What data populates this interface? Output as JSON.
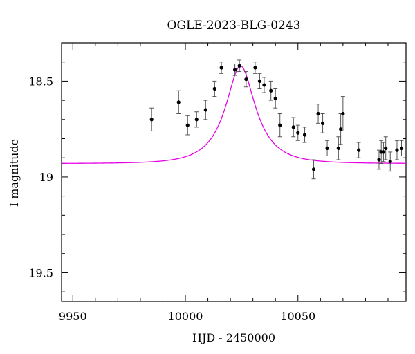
{
  "chart_data": {
    "type": "scatter",
    "title": "OGLE-2023-BLG-0243",
    "xlabel": "HJD - 2450000",
    "ylabel": "I magnitude",
    "xlim": [
      9945,
      10098
    ],
    "ylim": [
      19.65,
      18.3
    ],
    "y_inverted": true,
    "x_ticks": [
      9950,
      10000,
      10050
    ],
    "x_minor_step": 10,
    "y_ticks": [
      18.5,
      19,
      19.5
    ],
    "y_minor_step": 0.1,
    "grid": false,
    "colors": {
      "model": "#e600e6",
      "points": "#000000",
      "errorbars": "#555555"
    },
    "series": [
      {
        "kind": "points_with_errorbars",
        "x": [
          9985,
          9997,
          10001,
          10005,
          10009,
          10013,
          10016,
          10022,
          10024,
          10027,
          10031,
          10033,
          10035,
          10038,
          10040,
          10042,
          10048,
          10050,
          10053,
          10057,
          10059,
          10061,
          10063,
          10068,
          10069,
          10070,
          10077,
          10086,
          10087,
          10088,
          10089,
          10091,
          10094,
          10096
        ],
        "y": [
          18.7,
          18.61,
          18.73,
          18.7,
          18.65,
          18.54,
          18.43,
          18.44,
          18.42,
          18.49,
          18.43,
          18.5,
          18.52,
          18.55,
          18.59,
          18.73,
          18.74,
          18.77,
          18.78,
          18.96,
          18.67,
          18.72,
          18.85,
          18.85,
          18.75,
          18.67,
          18.86,
          18.91,
          18.87,
          18.87,
          18.85,
          18.92,
          18.86,
          18.85
        ],
        "err": [
          0.06,
          0.06,
          0.05,
          0.04,
          0.05,
          0.04,
          0.03,
          0.03,
          0.03,
          0.04,
          0.03,
          0.04,
          0.04,
          0.05,
          0.05,
          0.06,
          0.05,
          0.04,
          0.04,
          0.05,
          0.05,
          0.05,
          0.04,
          0.06,
          0.08,
          0.09,
          0.04,
          0.05,
          0.06,
          0.05,
          0.06,
          0.05,
          0.05,
          0.04
        ]
      },
      {
        "kind": "model_curve",
        "t0": 10024.5,
        "tE": 15,
        "u0": 0.45,
        "baseline_mag": 18.93,
        "peak_mag": 18.42
      }
    ]
  }
}
